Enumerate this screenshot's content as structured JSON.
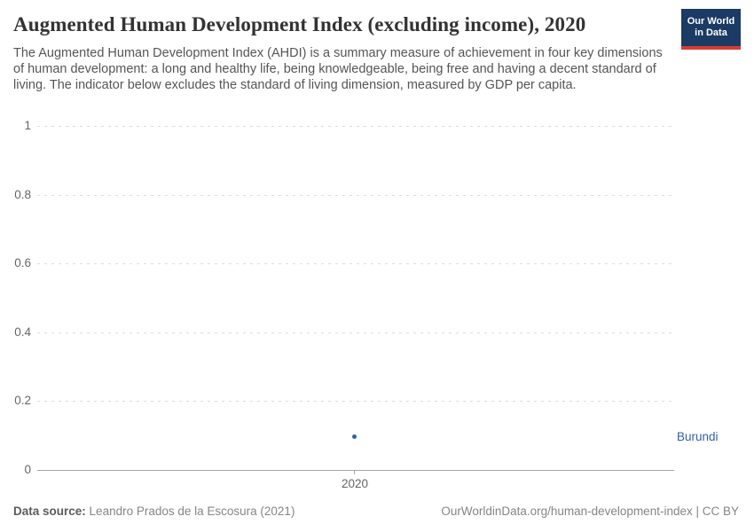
{
  "header": {
    "title": "Augmented Human Development Index (excluding income), 2020",
    "subtitle": "The Augmented Human Development Index (AHDI) is a summary measure of achievement in four key dimensions of human development: a long and healthy life, being knowledgeable, being free and having a decent standard of living. The indicator below excludes the standard of living dimension, measured by GDP per capita.",
    "logo": {
      "line1": "Our World",
      "line2": "in Data"
    }
  },
  "chart_data": {
    "type": "scatter",
    "title": "Augmented Human Development Index (excluding income), 2020",
    "points": [
      {
        "entity": "Burundi",
        "x": 2020,
        "y": 0.1
      }
    ],
    "xlabel": "",
    "ylabel": "",
    "xlim": [
      2020,
      2020
    ],
    "ylim": [
      0,
      1
    ],
    "yticks": [
      0,
      0.2,
      0.4,
      0.6,
      0.8,
      1
    ],
    "ytick_labels_top_to_bottom": [
      "1",
      "0.8",
      "0.6",
      "0.4",
      "0.2",
      "0"
    ],
    "xtick_labels": [
      "2020"
    ],
    "grid": "horizontal-dashed",
    "legend_position": "entity-label-right-of-plot",
    "series_color": "#3360a9"
  },
  "footer": {
    "datasource_label": "Data source:",
    "datasource_value": "Leandro Prados de la Escosura (2021)",
    "rights": "OurWorldinData.org/human-development-index | CC BY"
  },
  "colors": {
    "series_blue": "#3360a9",
    "logo_navy": "#1b3a64",
    "logo_red": "#d73c34",
    "gridline": "#dddddd",
    "axis_line": "#a5a5a5",
    "title_text": "#333333",
    "subtitle_text": "#555555",
    "tick_text": "#666666",
    "footer_text": "#858585"
  }
}
